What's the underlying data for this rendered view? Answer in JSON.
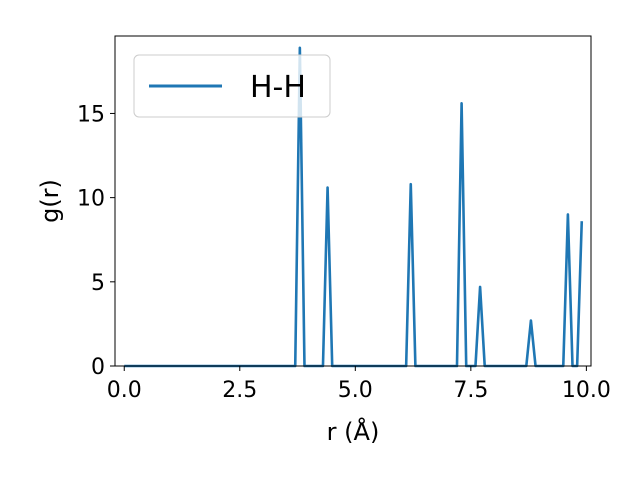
{
  "chart_data": {
    "type": "line",
    "xlabel": "r (Å)",
    "ylabel": "g(r)",
    "xlim": [
      -0.2,
      10.1
    ],
    "ylim": [
      0,
      19.6
    ],
    "xticks": [
      0.0,
      2.5,
      5.0,
      7.5,
      10.0
    ],
    "xtick_labels": [
      "0.0",
      "2.5",
      "5.0",
      "7.5",
      "10.0"
    ],
    "yticks": [
      0,
      5,
      10,
      15
    ],
    "ytick_labels": [
      "0",
      "5",
      "10",
      "15"
    ],
    "grid": false,
    "legend_position": "top-left",
    "series": [
      {
        "name": "H-H",
        "color": "#1f77b4",
        "x": [
          0.0,
          3.6,
          3.7,
          3.8,
          3.9,
          4.3,
          4.4,
          4.5,
          6.1,
          6.2,
          6.3,
          7.2,
          7.3,
          7.4,
          7.6,
          7.7,
          7.8,
          8.7,
          8.8,
          8.9,
          9.5,
          9.6,
          9.7,
          9.8,
          9.9
        ],
        "y": [
          0,
          0,
          0,
          18.9,
          0,
          0,
          10.6,
          0,
          0,
          10.8,
          0,
          0,
          15.6,
          0,
          0,
          4.7,
          0,
          0,
          2.7,
          0,
          0,
          9.0,
          0,
          0,
          8.6
        ]
      }
    ]
  }
}
